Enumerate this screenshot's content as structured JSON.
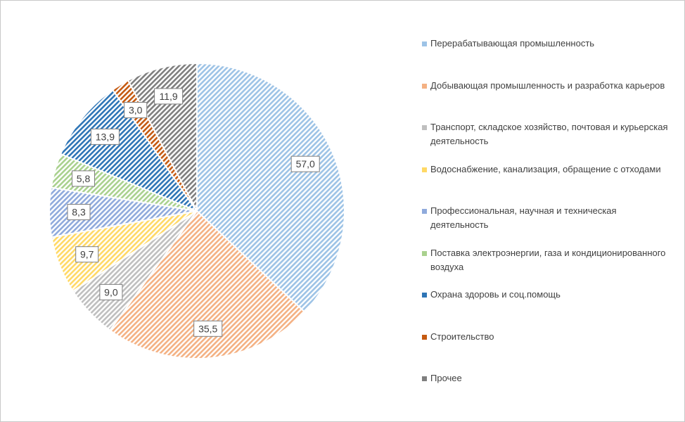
{
  "chart_data": {
    "type": "pie",
    "title": "",
    "legend_position": "right",
    "categories": [
      "Перерабатывающая промышленность",
      "Добывающая  промышленность  и разработка карьеров",
      "Транспорт, складское хозяйство, почтовая  и курьерская деятельность",
      "Водоснабжение, канализация, обращение с отходами",
      "Профессиональная, научная и техническая деятельность",
      "Поставка электроэнергии, газа и кондиционированного воздуха",
      "Охрана здоровь и соц.помощь",
      "Строительство",
      "Прочее"
    ],
    "values": [
      57.0,
      35.5,
      9.0,
      9.7,
      8.3,
      5.8,
      13.9,
      3.0,
      11.9
    ],
    "value_labels": [
      "57,0",
      "35,5",
      "9,0",
      "9,7",
      "8,3",
      "5,8",
      "13,9",
      "3,0",
      "11,9"
    ],
    "colors": [
      "#9dc3e6",
      "#f4b183",
      "#bfbfbf",
      "#ffd966",
      "#8faadc",
      "#a9d18e",
      "#2e75b6",
      "#c55a11",
      "#7f7f7f"
    ],
    "fill_pattern": "diagonal-hatch"
  }
}
